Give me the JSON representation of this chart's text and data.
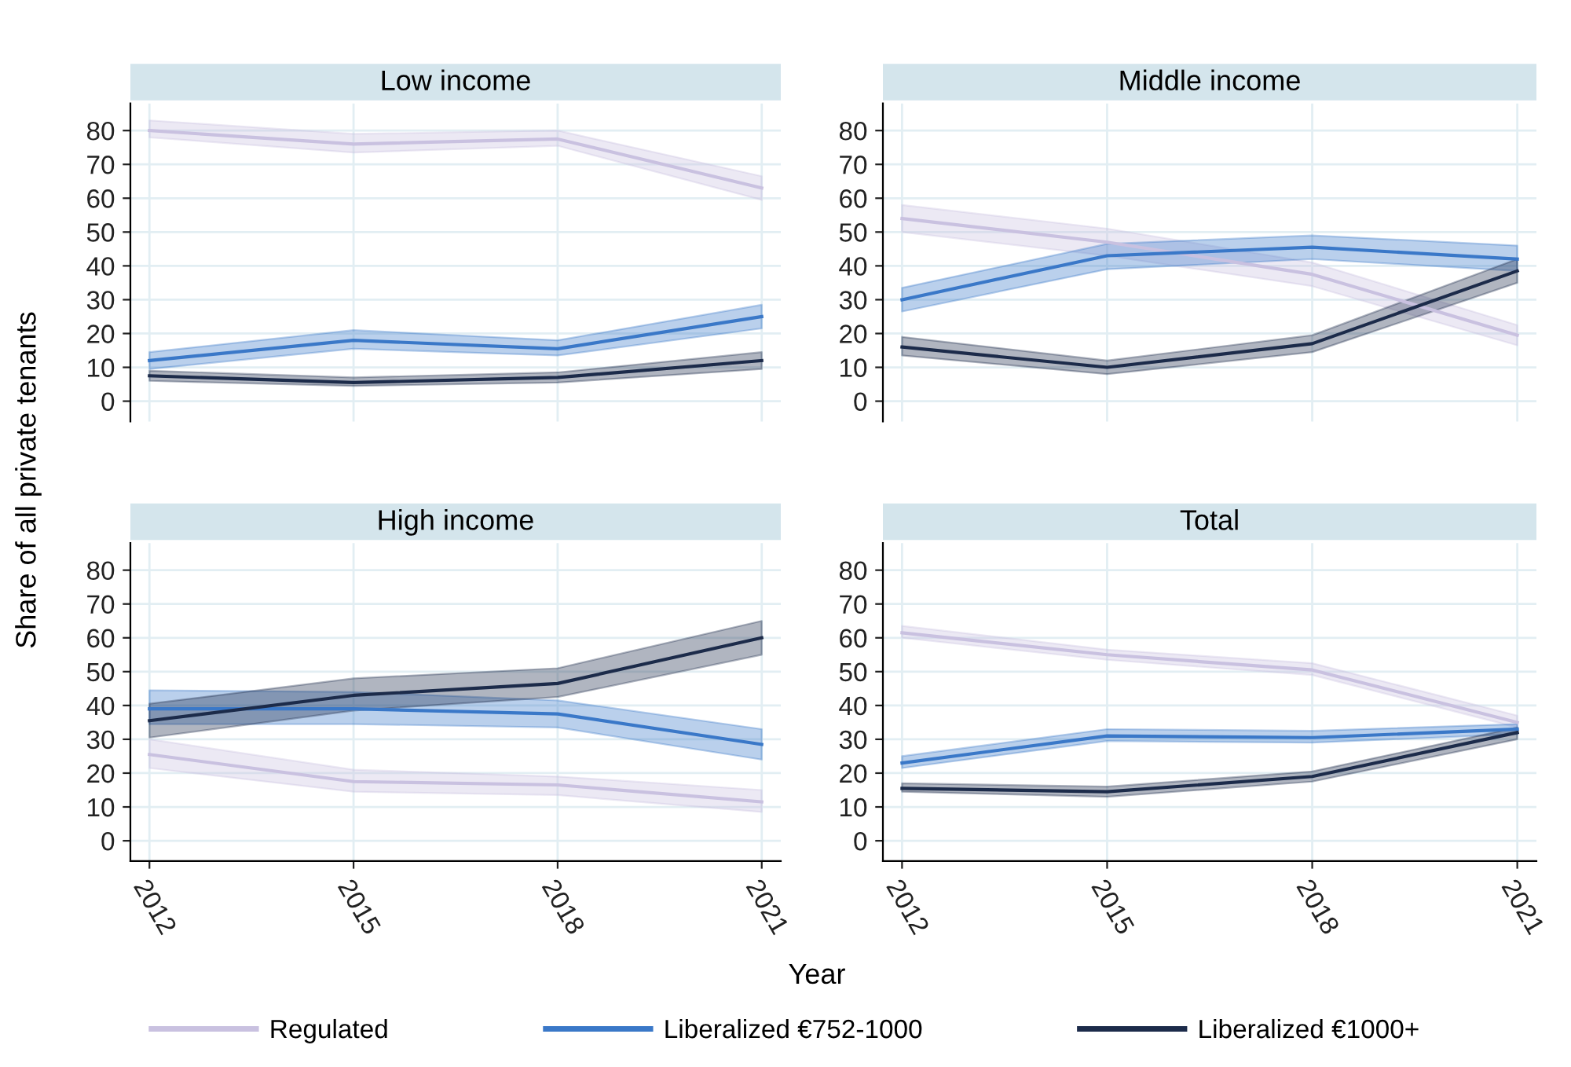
{
  "chart_data": [
    {
      "type": "line",
      "title": "Low income",
      "ylabel": "Share of all private tenants",
      "x": [
        2012,
        2015,
        2018,
        2021
      ],
      "xlim": [
        2011.72,
        2021.28
      ],
      "ylim": [
        -6,
        88
      ],
      "xticks": [
        2012,
        2015,
        2018,
        2021
      ],
      "yticks": [
        0,
        10,
        20,
        30,
        40,
        50,
        60,
        70,
        80
      ],
      "tick_labels": "y",
      "grid": true,
      "marker": "none",
      "line_style": "solid",
      "series": [
        {
          "color": "#c9c1e0",
          "values": [
            80,
            76,
            77.5,
            63
          ],
          "lower": [
            78,
            73.5,
            75.5,
            59.5
          ],
          "upper": [
            83,
            79,
            80,
            66.5
          ]
        },
        {
          "color": "#3a78c8",
          "values": [
            12,
            18,
            15.5,
            25
          ],
          "lower": [
            9.5,
            15.5,
            13.5,
            21.5
          ],
          "upper": [
            14.5,
            21,
            18,
            28.5
          ]
        },
        {
          "color": "#1c2b4a",
          "values": [
            7.5,
            5.5,
            7,
            12
          ],
          "lower": [
            6,
            4.5,
            5.5,
            9.5
          ],
          "upper": [
            9,
            7,
            8.5,
            14.5
          ]
        }
      ]
    },
    {
      "type": "line",
      "title": "Middle income",
      "x": [
        2012,
        2015,
        2018,
        2021
      ],
      "xlim": [
        2011.72,
        2021.28
      ],
      "ylim": [
        -6,
        88
      ],
      "xticks": [
        2012,
        2015,
        2018,
        2021
      ],
      "yticks": [
        0,
        10,
        20,
        30,
        40,
        50,
        60,
        70,
        80
      ],
      "tick_labels": "y",
      "grid": true,
      "marker": "none",
      "line_style": "solid",
      "series": [
        {
          "color": "#c9c1e0",
          "values": [
            54,
            47,
            37.5,
            19.5
          ],
          "lower": [
            50,
            43,
            34,
            16.5
          ],
          "upper": [
            58,
            51,
            41,
            22.5
          ]
        },
        {
          "color": "#3a78c8",
          "values": [
            30,
            43,
            45.5,
            42
          ],
          "lower": [
            26.5,
            39,
            42,
            38.5
          ],
          "upper": [
            33.5,
            46.5,
            49,
            46
          ]
        },
        {
          "color": "#1c2b4a",
          "values": [
            16,
            10,
            17,
            38.5
          ],
          "lower": [
            13.5,
            8,
            14.5,
            35
          ],
          "upper": [
            19,
            12,
            19.5,
            42
          ]
        }
      ]
    },
    {
      "type": "line",
      "title": "High income",
      "xlabel": "Year",
      "x": [
        2012,
        2015,
        2018,
        2021
      ],
      "xlim": [
        2011.72,
        2021.28
      ],
      "ylim": [
        -6,
        88
      ],
      "xticks": [
        2012,
        2015,
        2018,
        2021
      ],
      "yticks": [
        0,
        10,
        20,
        30,
        40,
        50,
        60,
        70,
        80
      ],
      "grid": true,
      "legend": "bottom",
      "marker": "none",
      "line_style": "solid",
      "series": [
        {
          "name": "Regulated",
          "color": "#c9c1e0",
          "values": [
            25.5,
            17.5,
            16.5,
            11.5
          ],
          "lower": [
            21.5,
            14.5,
            13.5,
            8.5
          ],
          "upper": [
            30,
            21,
            19,
            15
          ]
        },
        {
          "name": "Liberalized €752-1000",
          "color": "#3a78c8",
          "values": [
            39,
            39,
            37.5,
            28.5
          ],
          "lower": [
            34.5,
            34.5,
            33.5,
            24
          ],
          "upper": [
            44.5,
            44,
            41.5,
            33
          ]
        },
        {
          "name": "Liberalized €1000+",
          "color": "#1c2b4a",
          "values": [
            35.5,
            43,
            46.5,
            60
          ],
          "lower": [
            30.5,
            38.5,
            42.5,
            55
          ],
          "upper": [
            40.5,
            48,
            51,
            65
          ]
        }
      ]
    },
    {
      "type": "line",
      "title": "Total",
      "x": [
        2012,
        2015,
        2018,
        2021
      ],
      "xlim": [
        2011.72,
        2021.28
      ],
      "ylim": [
        -6,
        88
      ],
      "xticks": [
        2012,
        2015,
        2018,
        2021
      ],
      "yticks": [
        0,
        10,
        20,
        30,
        40,
        50,
        60,
        70,
        80
      ],
      "grid": true,
      "marker": "none",
      "line_style": "solid",
      "series": [
        {
          "color": "#c9c1e0",
          "values": [
            61.5,
            55,
            50.5,
            35
          ],
          "lower": [
            60,
            53.5,
            49,
            33.5
          ],
          "upper": [
            63.5,
            56.5,
            52.5,
            37
          ]
        },
        {
          "color": "#3a78c8",
          "values": [
            23,
            31,
            30.5,
            33
          ],
          "lower": [
            21.5,
            29.5,
            29,
            31.5
          ],
          "upper": [
            25,
            33,
            32.5,
            34.5
          ]
        },
        {
          "color": "#1c2b4a",
          "values": [
            15.5,
            14.5,
            19,
            32
          ],
          "lower": [
            14.5,
            13,
            17.5,
            30
          ],
          "upper": [
            17,
            16,
            20.5,
            33.5
          ]
        }
      ]
    }
  ]
}
